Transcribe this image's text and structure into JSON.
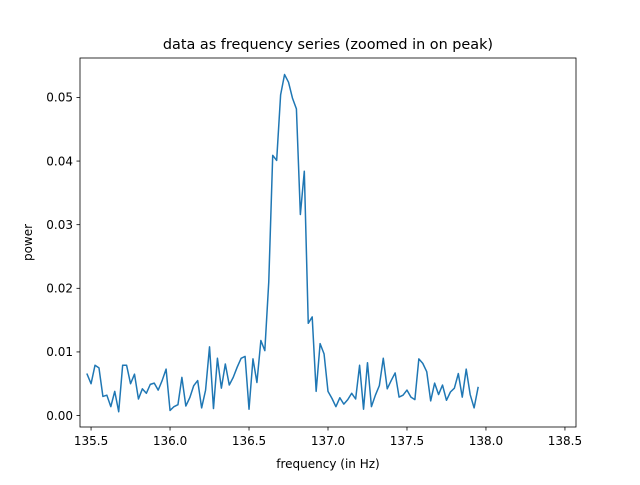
{
  "chart_data": {
    "type": "line",
    "title": "data as frequency series (zoomed in on peak)",
    "xlabel": "frequency (in Hz)",
    "ylabel": "power",
    "xlim": [
      135.43,
      138.57
    ],
    "ylim": [
      -0.0018,
      0.0562
    ],
    "grid": false,
    "color": "#1f77b4",
    "x_ticks": [
      {
        "value": 135.5,
        "label": "135.5"
      },
      {
        "value": 136.0,
        "label": "136.0"
      },
      {
        "value": 136.5,
        "label": "136.5"
      },
      {
        "value": 137.0,
        "label": "137.0"
      },
      {
        "value": 137.5,
        "label": "137.5"
      },
      {
        "value": 138.0,
        "label": "138.0"
      },
      {
        "value": 138.5,
        "label": "138.5"
      }
    ],
    "y_ticks": [
      {
        "value": 0.0,
        "label": "0.00"
      },
      {
        "value": 0.01,
        "label": "0.01"
      },
      {
        "value": 0.02,
        "label": "0.02"
      },
      {
        "value": 0.03,
        "label": "0.03"
      },
      {
        "value": 0.04,
        "label": "0.04"
      },
      {
        "value": 0.05,
        "label": "0.05"
      }
    ],
    "series": [
      {
        "x_start": 135.475,
        "x_step": 0.025,
        "values": [
          0.0065,
          0.005,
          0.0079,
          0.0075,
          0.003,
          0.0032,
          0.0014,
          0.0038,
          0.0006,
          0.0079,
          0.0079,
          0.005,
          0.0065,
          0.0026,
          0.0042,
          0.0035,
          0.0049,
          0.0051,
          0.004,
          0.0055,
          0.0073,
          0.0008,
          0.0014,
          0.0017,
          0.006,
          0.0015,
          0.0028,
          0.0047,
          0.0055,
          0.0012,
          0.004,
          0.0108,
          0.0011,
          0.009,
          0.0043,
          0.0081,
          0.0048,
          0.006,
          0.0076,
          0.009,
          0.0093,
          0.001,
          0.0089,
          0.0052,
          0.0118,
          0.0102,
          0.021,
          0.0409,
          0.0401,
          0.0504,
          0.0536,
          0.0524,
          0.0499,
          0.0482,
          0.0316,
          0.0384,
          0.0145,
          0.0155,
          0.0038,
          0.0113,
          0.0097,
          0.0038,
          0.0027,
          0.0014,
          0.0028,
          0.0018,
          0.0025,
          0.0035,
          0.0026,
          0.0079,
          0.001,
          0.0083,
          0.0014,
          0.0032,
          0.0047,
          0.009,
          0.0042,
          0.0055,
          0.0067,
          0.0029,
          0.0032,
          0.004,
          0.0029,
          0.0025,
          0.0089,
          0.0082,
          0.0069,
          0.0023,
          0.0051,
          0.0033,
          0.0048,
          0.0024,
          0.0037,
          0.0043,
          0.0066,
          0.0029,
          0.0073,
          0.0033,
          0.0012,
          0.0044
        ]
      }
    ]
  }
}
